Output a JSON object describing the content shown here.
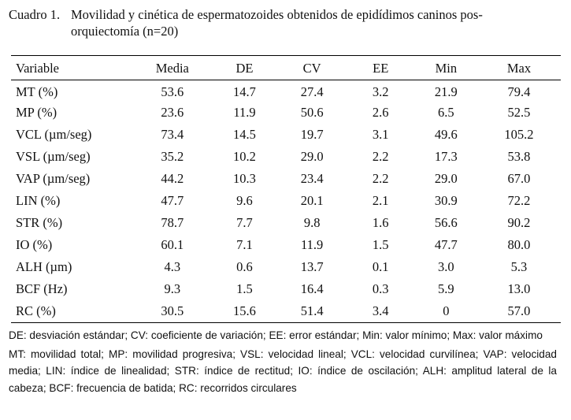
{
  "title": {
    "label": "Cuadro 1.",
    "line1": "Movilidad y cinética de espermatozoides obtenidos de epidídimos caninos pos-",
    "line2": "orquiectomía (n=20)"
  },
  "table": {
    "headers": [
      "Variable",
      "Media",
      "DE",
      "CV",
      "EE",
      "Min",
      "Max"
    ],
    "rows": [
      [
        "MT (%)",
        "53.6",
        "14.7",
        "27.4",
        "3.2",
        "21.9",
        "79.4"
      ],
      [
        "MP (%)",
        "23.6",
        "11.9",
        "50.6",
        "2.6",
        "6.5",
        "52.5"
      ],
      [
        "VCL (µm/seg)",
        "73.4",
        "14.5",
        "19.7",
        "3.1",
        "49.6",
        "105.2"
      ],
      [
        "VSL (µm/seg)",
        "35.2",
        "10.2",
        "29.0",
        "2.2",
        "17.3",
        "53.8"
      ],
      [
        "VAP (µm/seg)",
        "44.2",
        "10.3",
        "23.4",
        "2.2",
        "29.0",
        "67.0"
      ],
      [
        "LIN (%)",
        "47.7",
        "9.6",
        "20.1",
        "2.1",
        "30.9",
        "72.2"
      ],
      [
        "STR (%)",
        "78.7",
        "7.7",
        "9.8",
        "1.6",
        "56.6",
        "90.2"
      ],
      [
        "IO (%)",
        "60.1",
        "7.1",
        "11.9",
        "1.5",
        "47.7",
        "80.0"
      ],
      [
        "ALH (µm)",
        "4.3",
        "0.6",
        "13.7",
        "0.1",
        "3.0",
        "5.3"
      ],
      [
        "BCF (Hz)",
        "9.3",
        "1.5",
        "16.4",
        "0.3",
        "5.9",
        "13.0"
      ],
      [
        "RC (%)",
        "30.5",
        "15.6",
        "51.4",
        "3.4",
        "0",
        "57.0"
      ]
    ]
  },
  "notes": {
    "abbrev_stats": "DE: desviación estándar; CV: coeficiente de variación; EE: error estándar; Min: valor mínimo; Max: valor máximo",
    "abbrev_vars": "MT: movilidad total; MP: movilidad progresiva; VSL: velocidad lineal; VCL: velocidad curvilínea; VAP: velocidad media; LIN: índice de linealidad; STR: índice de rectitud; IO: índice de oscilación; ALH: amplitud lateral de la cabeza; BCF: frecuencia de batida; RC: recorridos circulares"
  }
}
